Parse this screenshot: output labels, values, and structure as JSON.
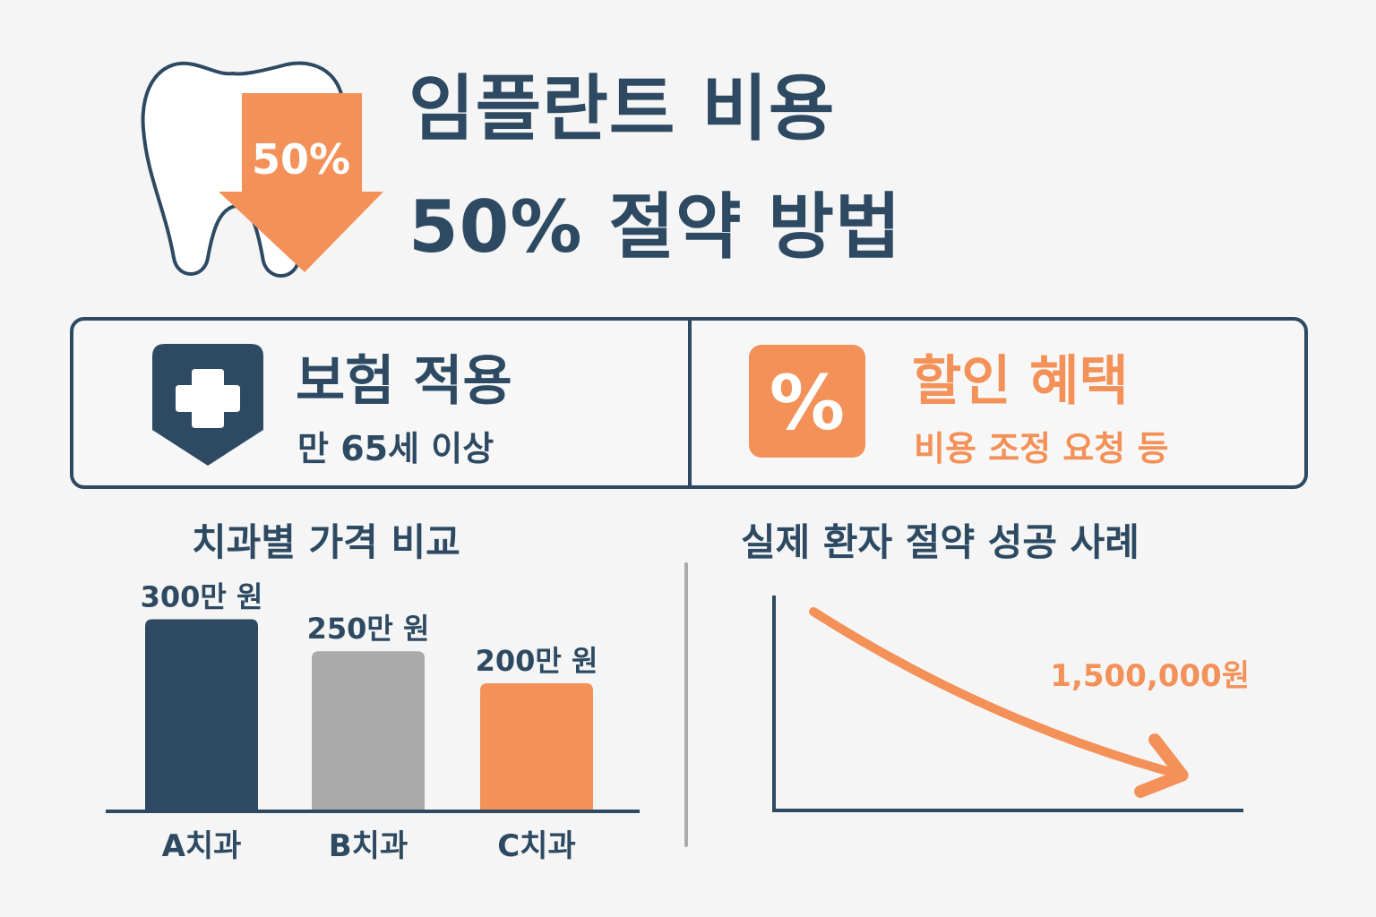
{
  "header": {
    "title_line1": "임플란트 비용",
    "title_line2": "50% 절약 방법",
    "badge": "50%"
  },
  "benefits": [
    {
      "title": "보험 적용",
      "subtitle": "만 65세 이상",
      "icon": "shield-plus-icon"
    },
    {
      "title": "할인 혜택",
      "subtitle": "비용 조정 요청 등",
      "icon": "percent-icon",
      "glyph": "%"
    }
  ],
  "sections": {
    "price_comparison": "치과별 가격 비교",
    "success_case": "실제 환자 절약 성공 사례"
  },
  "colors": {
    "navy": "#2d4a62",
    "orange": "#f39158",
    "gray": "#aaaaaa",
    "background": "#f5f5f5"
  },
  "chart_data": [
    {
      "type": "bar",
      "title": "치과별 가격 비교",
      "categories": [
        "A치과",
        "B치과",
        "C치과"
      ],
      "values": [
        300,
        250,
        200
      ],
      "data_labels": [
        "300만 원",
        "250만 원",
        "200만 원"
      ],
      "colors": [
        "#2d4a62",
        "#aaaaaa",
        "#f39158"
      ],
      "unit": "만 원",
      "ylim": [
        0,
        330
      ],
      "grid": false
    },
    {
      "type": "line",
      "title": "실제 환자 절약 성공 사례",
      "trend": "decreasing",
      "annotation": "1,500,000원",
      "color": "#f39158",
      "grid": false
    }
  ]
}
